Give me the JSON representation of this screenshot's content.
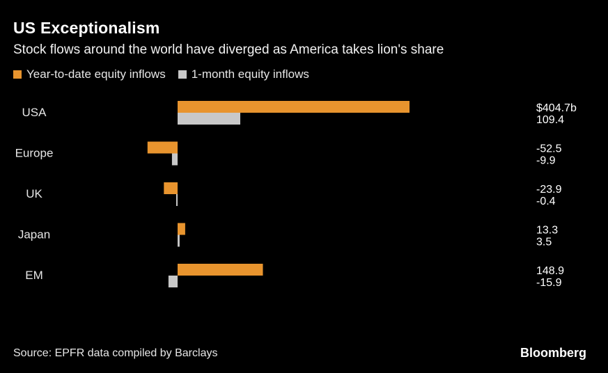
{
  "header": {
    "title": "US Exceptionalism",
    "subtitle": "Stock flows around the world have diverged as America takes lion's share"
  },
  "legend": {
    "items": [
      {
        "label": "Year-to-date equity inflows",
        "color": "#e8942e"
      },
      {
        "label": "1-month equity inflows",
        "color": "#c8c8c8"
      }
    ]
  },
  "footer": {
    "source": "Source: EPFR data compiled by Barclays",
    "brand": "Bloomberg"
  },
  "colors": {
    "background": "#000000",
    "ytd": "#e8942e",
    "one_month": "#c8c8c8",
    "text": "#ffffff"
  },
  "chart_data": {
    "type": "bar",
    "orientation": "horizontal",
    "categories": [
      "USA",
      "Europe",
      "UK",
      "Japan",
      "EM"
    ],
    "series": [
      {
        "name": "Year-to-date equity inflows",
        "values": [
          404.7,
          -52.5,
          -23.9,
          13.3,
          148.9
        ]
      },
      {
        "name": "1-month equity inflows",
        "values": [
          109.4,
          -9.9,
          -0.4,
          3.5,
          -15.9
        ]
      }
    ],
    "value_labels": [
      [
        "$404.7b",
        "109.4"
      ],
      [
        "-52.5",
        "-9.9"
      ],
      [
        "-23.9",
        "-0.4"
      ],
      [
        "13.3",
        "3.5"
      ],
      [
        "148.9",
        "-15.9"
      ]
    ],
    "grid": false,
    "axis_labels_shown": false,
    "legend_position": "top-left"
  }
}
